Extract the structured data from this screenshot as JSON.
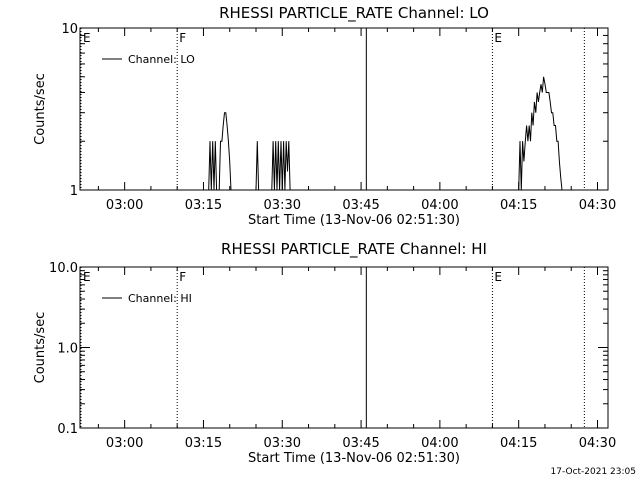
{
  "chart_data": [
    {
      "type": "line",
      "title": "RHESSI PARTICLE_RATE Channel: LO",
      "xlabel": "Start Time (13-Nov-06 02:51:30)",
      "ylabel": "Counts/sec",
      "xlim": [
        "02:51:30",
        "04:32:00"
      ],
      "ylim": [
        1,
        10
      ],
      "yscale": "log",
      "x_ticks": [
        "03:00",
        "03:15",
        "03:30",
        "03:45",
        "04:00",
        "04:15",
        "04:30"
      ],
      "y_ticks": [
        "1",
        "10"
      ],
      "legend": {
        "position": "top-left",
        "entries": [
          "Channel: LO"
        ]
      },
      "markers": [
        {
          "label": "E",
          "time": "02:51:30",
          "style": "dotted"
        },
        {
          "label": "F",
          "time": "03:10:00",
          "style": "dotted"
        },
        {
          "label": "",
          "time": "03:46:00",
          "style": "solid"
        },
        {
          "label": "E",
          "time": "04:10:00",
          "style": "dotted"
        },
        {
          "label": "",
          "time": "04:27:30",
          "style": "dotted"
        }
      ],
      "series": [
        {
          "name": "Channel: LO",
          "points": [
            [
              "03:16:00",
              1
            ],
            [
              "03:16:15",
              2
            ],
            [
              "03:16:30",
              1
            ],
            [
              "03:16:45",
              2
            ],
            [
              "03:17:00",
              1
            ],
            [
              "03:17:15",
              2
            ],
            [
              "03:17:30",
              1
            ],
            [
              "03:18:00",
              1
            ],
            [
              "03:18:15",
              2
            ],
            [
              "03:18:30",
              2
            ],
            [
              "03:18:45",
              2.5
            ],
            [
              "03:19:00",
              3
            ],
            [
              "03:19:15",
              3
            ],
            [
              "03:19:30",
              2.5
            ],
            [
              "03:19:45",
              2
            ],
            [
              "03:20:00",
              1.5
            ],
            [
              "03:20:15",
              1
            ],
            [
              "03:25:00",
              1
            ],
            [
              "03:25:15",
              2
            ],
            [
              "03:25:30",
              1
            ],
            [
              "03:28:00",
              1
            ],
            [
              "03:28:15",
              2
            ],
            [
              "03:28:30",
              1
            ],
            [
              "03:28:45",
              2
            ],
            [
              "03:29:00",
              1
            ],
            [
              "03:29:15",
              2
            ],
            [
              "03:29:30",
              1
            ],
            [
              "03:29:45",
              2
            ],
            [
              "03:30:00",
              1
            ],
            [
              "03:30:15",
              2
            ],
            [
              "03:30:30",
              1
            ],
            [
              "03:30:45",
              2
            ],
            [
              "03:31:00",
              1.3
            ],
            [
              "03:31:15",
              2
            ],
            [
              "03:31:30",
              1
            ],
            [
              "04:15:00",
              1
            ],
            [
              "04:15:15",
              2
            ],
            [
              "04:15:30",
              1
            ],
            [
              "04:15:45",
              2
            ],
            [
              "04:16:00",
              1.5
            ],
            [
              "04:16:15",
              2
            ],
            [
              "04:16:30",
              2.5
            ],
            [
              "04:16:45",
              2
            ],
            [
              "04:17:00",
              2.5
            ],
            [
              "04:17:15",
              2
            ],
            [
              "04:17:30",
              3
            ],
            [
              "04:17:45",
              2.5
            ],
            [
              "04:18:00",
              3.5
            ],
            [
              "04:18:15",
              3
            ],
            [
              "04:18:30",
              4
            ],
            [
              "04:18:45",
              3.5
            ],
            [
              "04:19:00",
              4
            ],
            [
              "04:19:15",
              4.5
            ],
            [
              "04:19:30",
              4
            ],
            [
              "04:19:45",
              5
            ],
            [
              "04:20:00",
              4.5
            ],
            [
              "04:20:15",
              4
            ],
            [
              "04:20:30",
              4
            ],
            [
              "04:20:45",
              4
            ],
            [
              "04:21:00",
              3.5
            ],
            [
              "04:21:15",
              3
            ],
            [
              "04:21:30",
              3
            ],
            [
              "04:21:45",
              2.5
            ],
            [
              "04:22:00",
              2.5
            ],
            [
              "04:22:15",
              2
            ],
            [
              "04:22:30",
              2
            ],
            [
              "04:22:45",
              1.5
            ],
            [
              "04:23:00",
              1.2
            ],
            [
              "04:23:15",
              1
            ]
          ]
        }
      ]
    },
    {
      "type": "line",
      "title": "RHESSI PARTICLE_RATE Channel: HI",
      "xlabel": "Start Time (13-Nov-06 02:51:30)",
      "ylabel": "Counts/sec",
      "xlim": [
        "02:51:30",
        "04:32:00"
      ],
      "ylim": [
        0.1,
        10
      ],
      "yscale": "log",
      "x_ticks": [
        "03:00",
        "03:15",
        "03:30",
        "03:45",
        "04:00",
        "04:15",
        "04:30"
      ],
      "y_ticks": [
        "0.1",
        "1.0",
        "10.0"
      ],
      "legend": {
        "position": "top-left",
        "entries": [
          "Channel: HI"
        ]
      },
      "markers": [
        {
          "label": "E",
          "time": "02:51:30",
          "style": "dotted"
        },
        {
          "label": "F",
          "time": "03:10:00",
          "style": "dotted"
        },
        {
          "label": "",
          "time": "03:46:00",
          "style": "solid"
        },
        {
          "label": "E",
          "time": "04:10:00",
          "style": "dotted"
        },
        {
          "label": "",
          "time": "04:27:30",
          "style": "dotted"
        }
      ],
      "series": [
        {
          "name": "Channel: HI",
          "points": []
        }
      ]
    }
  ],
  "footer": {
    "timestamp": "17-Oct-2021 23:05"
  }
}
